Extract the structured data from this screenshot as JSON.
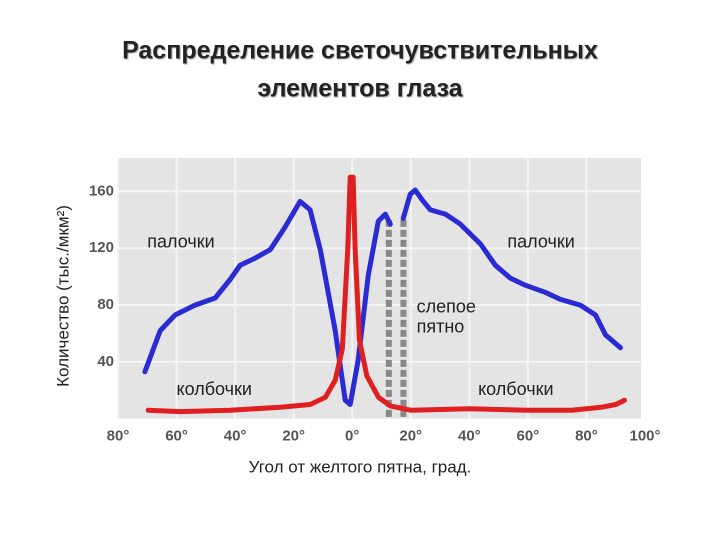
{
  "chart_data": {
    "type": "line",
    "title": [
      "Распределение светочувствительных",
      "элементов глаза"
    ],
    "x_label": "Угол от желтого пятна, град.",
    "y_label": "Количество (тыс./мкм²)",
    "xlim": [
      -80,
      100
    ],
    "ylim": [
      0,
      180
    ],
    "xticks": [
      {
        "value": -80,
        "label": "80°"
      },
      {
        "value": -60,
        "label": "60°"
      },
      {
        "value": -40,
        "label": "40°"
      },
      {
        "value": -20,
        "label": "20°"
      },
      {
        "value": 0,
        "label": "0°"
      },
      {
        "value": 20,
        "label": "20°"
      },
      {
        "value": 40,
        "label": "40°"
      },
      {
        "value": 60,
        "label": "60°"
      },
      {
        "value": 80,
        "label": "80°"
      },
      {
        "value": 100,
        "label": "100°"
      }
    ],
    "yticks": [
      40,
      80,
      120,
      160
    ],
    "grid": true,
    "blind_spot_x": [
      12.5,
      17.5
    ],
    "series": [
      {
        "name": "палочки",
        "color": "#2b2bd6",
        "x": [
          -70.8,
          -65.6,
          -60.5,
          -53.7,
          -46.8,
          -41.7,
          -38.3,
          -33.2,
          -28,
          -22.9,
          -17.8,
          -14.4,
          -10.9,
          -5.8,
          -2.4,
          -0.7,
          2,
          5.5,
          8.9,
          11.3,
          13,
          15,
          17.4,
          19.8,
          21.5,
          23.9,
          26.7,
          31.8,
          36.9,
          43.8,
          48.9,
          54,
          59.1,
          65.9,
          71.1,
          77.9,
          83.1,
          86.5,
          91.6
        ],
        "values": [
          33,
          62,
          73,
          80,
          85,
          98,
          108,
          113,
          119,
          135,
          153,
          147,
          119,
          62,
          13,
          10,
          41,
          101,
          139,
          144,
          137,
          null,
          141,
          158,
          161,
          154,
          147,
          144,
          137,
          123,
          108,
          99,
          94,
          89,
          84,
          80,
          73,
          59,
          50
        ]
      },
      {
        "name": "колбочки",
        "color": "#e02020",
        "x": [
          -69.7,
          -58.8,
          -41.7,
          -24.6,
          -14.4,
          -9.2,
          -5.8,
          -3.4,
          -1.5,
          -0.7,
          0.3,
          1,
          2.5,
          5,
          9,
          13,
          20,
          40,
          60,
          75,
          85,
          90,
          93
        ],
        "values": [
          6,
          5,
          6,
          8,
          10,
          15,
          27,
          49,
          120,
          170,
          170,
          120,
          55,
          30,
          15,
          9,
          6,
          7,
          6,
          6,
          8,
          10,
          13
        ]
      }
    ],
    "annotations": [
      {
        "text": "палочки",
        "x": -70,
        "y": 124
      },
      {
        "text": "палочки",
        "x": 53,
        "y": 124
      },
      {
        "text": "колбочки",
        "x": -60,
        "y": 20
      },
      {
        "text": "колбочки",
        "x": 43,
        "y": 20
      },
      {
        "text": [
          "слепое",
          "пятно"
        ],
        "x": 22,
        "y": 78
      }
    ]
  }
}
